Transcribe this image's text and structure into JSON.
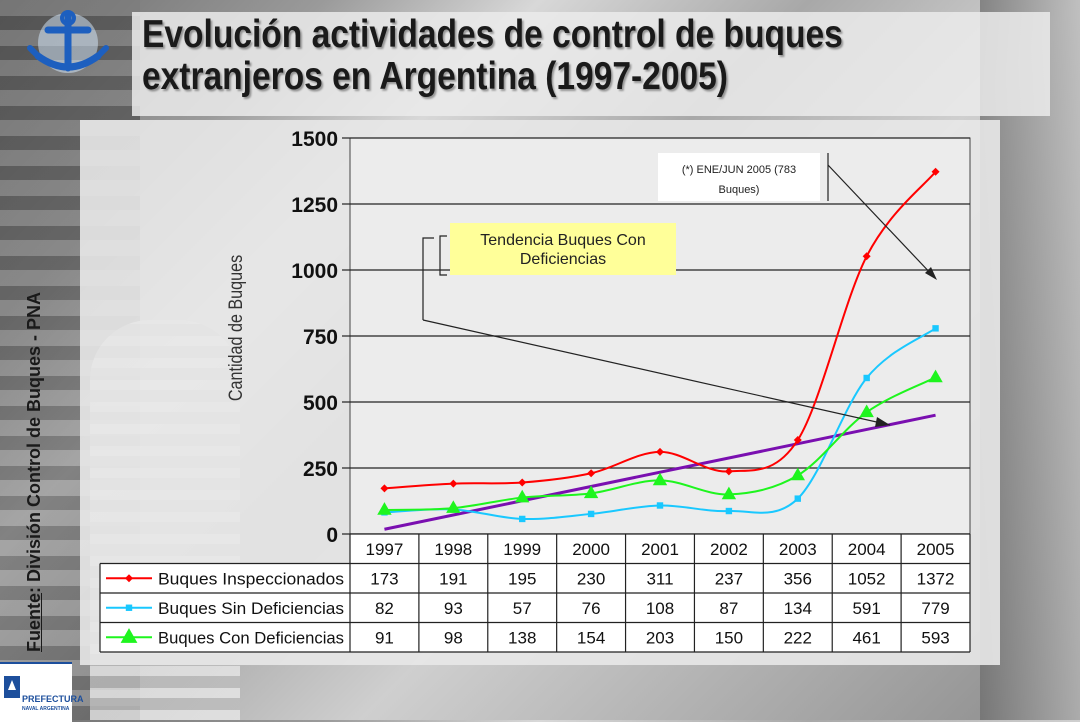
{
  "title": "Evolución actividades de control de buques extranjeros en Argentina (1997-2005)",
  "source_label": "Fuente",
  "source_text": ": División Control de Buques - PNA",
  "logo_text_1": "PREFECTURA",
  "logo_text_2": "NAVAL ARGENTINA",
  "colors": {
    "inspeccionados": "#ff0000",
    "sin_deficiencias": "#19c8ff",
    "con_deficiencias": "#1ef51e",
    "tendencia": "#7a0fb0"
  },
  "chart_data": {
    "type": "line",
    "ylabel": "Cantidad de Buques",
    "ylim": [
      0,
      1500
    ],
    "yticks": [
      0,
      250,
      500,
      750,
      1000,
      1250,
      1500
    ],
    "categories": [
      "1997",
      "1998",
      "1999",
      "2000",
      "2001",
      "2002",
      "2003",
      "2004",
      "2005"
    ],
    "series": [
      {
        "name": "Buques Inspeccionados",
        "marker": "diamond",
        "color": "#ff0000",
        "values": [
          173,
          191,
          195,
          230,
          311,
          237,
          356,
          1052,
          1372
        ]
      },
      {
        "name": "Buques Sin Deficiencias",
        "marker": "square",
        "color": "#19c8ff",
        "values": [
          82,
          93,
          57,
          76,
          108,
          87,
          134,
          591,
          779
        ]
      },
      {
        "name": "Buques Con Deficiencias",
        "marker": "triangle",
        "color": "#1ef51e",
        "values": [
          91,
          98,
          138,
          154,
          203,
          150,
          222,
          461,
          593
        ]
      }
    ],
    "trendline": {
      "color": "#7a0fb0",
      "start": 18,
      "end": 450
    },
    "annotations": [
      {
        "text_lines": [
          "Tendencia Buques Con",
          "Deficiencias"
        ]
      },
      {
        "text_lines": [
          "(*) ENE/JUN 2005 (783",
          "Buques)"
        ]
      }
    ],
    "grid": true,
    "data_table": true
  }
}
